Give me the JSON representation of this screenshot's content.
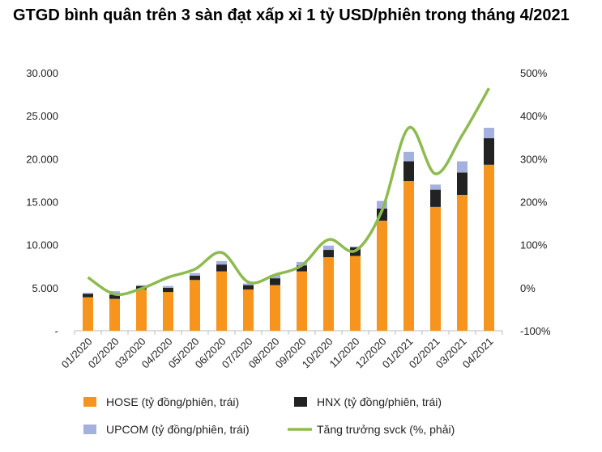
{
  "chart_data": {
    "type": "bar",
    "title": "GTGD bình quân trên 3 sàn đạt xấp xỉ 1 tỷ USD/phiên trong tháng 4/2021",
    "categories": [
      "01/2020",
      "02/2020",
      "03/2020",
      "04/2020",
      "05/2020",
      "06/2020",
      "07/2020",
      "08/2020",
      "09/2020",
      "10/2020",
      "11/2020",
      "12/2020",
      "01/2021",
      "02/2021",
      "03/2021",
      "04/2021"
    ],
    "series": [
      {
        "name": "HOSE (tỷ đồng/phiên, trái)",
        "type": "stacked-bar",
        "axis": "left",
        "color": "#f7941d",
        "values": [
          3900,
          3700,
          4800,
          4500,
          5900,
          6900,
          4800,
          5300,
          6900,
          8550,
          8700,
          12800,
          17400,
          14400,
          15800,
          19300
        ]
      },
      {
        "name": "HNX (tỷ đồng/phiên, trái)",
        "type": "stacked-bar",
        "axis": "left",
        "color": "#222222",
        "values": [
          400,
          500,
          400,
          500,
          500,
          800,
          500,
          800,
          700,
          850,
          1000,
          1400,
          2300,
          2000,
          2600,
          3100
        ]
      },
      {
        "name": "UPCOM (tỷ đồng/phiên, trái)",
        "type": "stacked-bar",
        "axis": "left",
        "color": "#a4b1de",
        "values": [
          100,
          400,
          100,
          200,
          300,
          400,
          200,
          400,
          400,
          500,
          100,
          900,
          1100,
          600,
          1300,
          1200
        ]
      },
      {
        "name": "Tăng trưởng svck (%, phải)",
        "type": "line",
        "axis": "right",
        "color": "#8dbb4f",
        "values": [
          24,
          -15,
          -2,
          24,
          43,
          82,
          13,
          30,
          52,
          112,
          86,
          180,
          372,
          265,
          355,
          464
        ]
      }
    ],
    "left_axis": {
      "min": 0,
      "max": 30000,
      "ticks": [
        "-",
        "5.000",
        "10.000",
        "15.000",
        "20.000",
        "25.000",
        "30.000"
      ]
    },
    "right_axis": {
      "min": -100,
      "max": 500,
      "ticks": [
        "-100%",
        "0%",
        "100%",
        "200%",
        "300%",
        "400%",
        "500%"
      ]
    },
    "legend": "bottom"
  }
}
